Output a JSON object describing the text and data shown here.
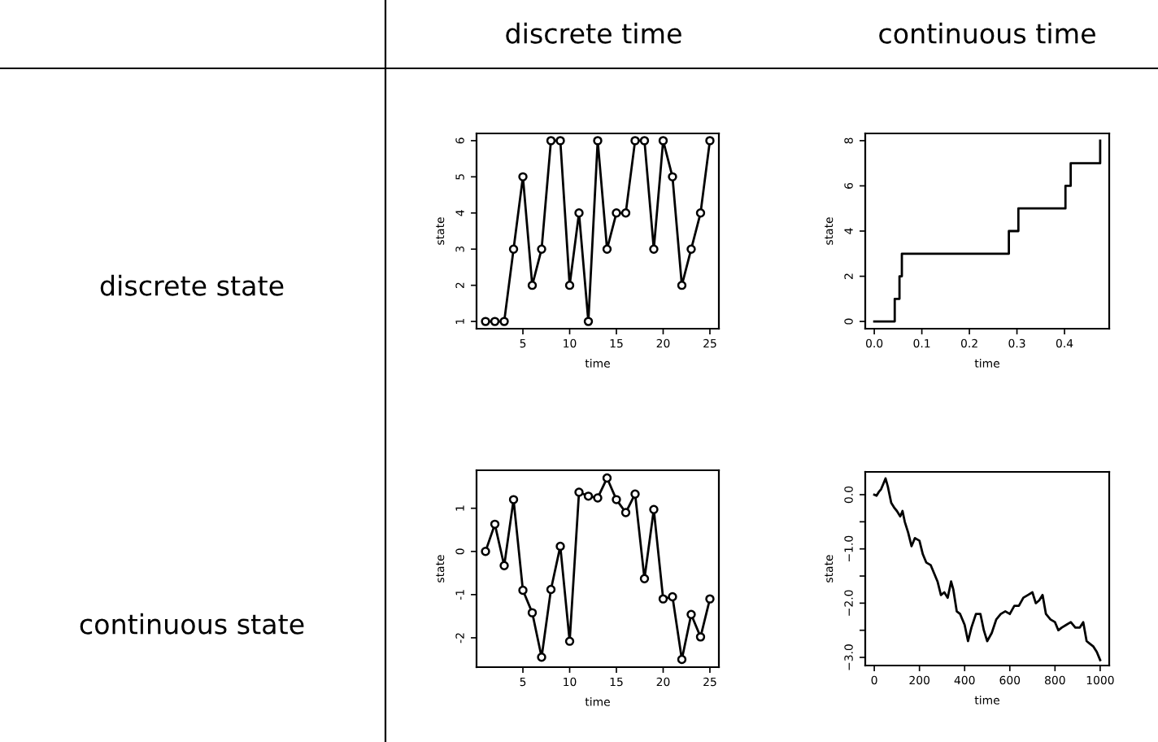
{
  "chart_data": [
    {
      "type": "line",
      "annotations": [
        "discrete time",
        "discrete state"
      ],
      "xlabel": "time",
      "ylabel": "state",
      "marker": "circle",
      "color": "#000000",
      "x": [
        1,
        2,
        3,
        4,
        5,
        6,
        7,
        8,
        9,
        10,
        11,
        12,
        13,
        14,
        15,
        16,
        17,
        18,
        19,
        20,
        21,
        22,
        23,
        24,
        25
      ],
      "values": [
        1,
        1,
        1,
        3,
        5,
        2,
        3,
        6,
        6,
        2,
        4,
        1,
        6,
        3,
        4,
        4,
        6,
        6,
        3,
        6,
        5,
        2,
        3,
        4,
        6
      ],
      "xlim": [
        0.04,
        25.96
      ],
      "xticks": [
        5,
        10,
        15,
        20,
        25
      ],
      "ylim": [
        0.8,
        6.2
      ],
      "yticks": [
        1,
        2,
        3,
        4,
        5,
        6
      ]
    },
    {
      "type": "step",
      "annotations": [
        "continuous time"
      ],
      "xlabel": "time",
      "ylabel": "state",
      "color": "#000000",
      "x": [
        0,
        0.043,
        0.053,
        0.058,
        0.283,
        0.303,
        0.402,
        0.413,
        0.475
      ],
      "values": [
        0,
        1,
        2,
        3,
        4,
        5,
        6,
        7,
        8
      ],
      "xlim": [
        -0.019,
        0.494
      ],
      "xticks": [
        {
          "value": 0,
          "label": "0.0"
        },
        0.1,
        0.2,
        0.3,
        0.4
      ],
      "ylim": [
        -0.32,
        8.32
      ],
      "yticks": [
        0,
        2,
        4,
        6,
        8
      ]
    },
    {
      "type": "line",
      "annotations": [
        "continuous state"
      ],
      "xlabel": "time",
      "ylabel": "state",
      "marker": "circle",
      "color": "#000000",
      "x": [
        1,
        2,
        3,
        4,
        5,
        6,
        7,
        8,
        9,
        10,
        11,
        12,
        13,
        14,
        15,
        16,
        17,
        18,
        19,
        20,
        21,
        22,
        23,
        24,
        25
      ],
      "values": [
        0,
        0.63,
        -0.33,
        1.2,
        -0.9,
        -1.42,
        -2.45,
        -0.88,
        0.12,
        -2.08,
        1.37,
        1.28,
        1.24,
        1.7,
        1.2,
        0.9,
        1.33,
        -0.63,
        0.97,
        -1.1,
        -1.05,
        -2.5,
        -1.46,
        -1.98,
        -1.1
      ],
      "xlim": [
        0.04,
        25.96
      ],
      "xticks": [
        5,
        10,
        15,
        20,
        25
      ],
      "ylim": [
        -2.68,
        1.88
      ],
      "yticks": [
        -2,
        -1,
        0,
        1
      ]
    },
    {
      "type": "line",
      "xlabel": "time",
      "ylabel": "state",
      "color": "#000000",
      "x": [
        0,
        10,
        20,
        30,
        40,
        50,
        60,
        75,
        90,
        100,
        115,
        125,
        135,
        150,
        165,
        180,
        200,
        215,
        230,
        250,
        265,
        280,
        295,
        310,
        325,
        340,
        350,
        365,
        380,
        400,
        415,
        430,
        450,
        470,
        485,
        500,
        520,
        540,
        560,
        580,
        600,
        620,
        640,
        660,
        680,
        700,
        715,
        730,
        745,
        760,
        780,
        800,
        815,
        830,
        850,
        870,
        890,
        910,
        925,
        940,
        955,
        970,
        985,
        1000
      ],
      "values": [
        0.0,
        -0.02,
        0.05,
        0.1,
        0.2,
        0.3,
        0.15,
        -0.15,
        -0.25,
        -0.3,
        -0.4,
        -0.3,
        -0.5,
        -0.7,
        -0.95,
        -0.8,
        -0.85,
        -1.1,
        -1.25,
        -1.3,
        -1.45,
        -1.6,
        -1.85,
        -1.8,
        -1.9,
        -1.6,
        -1.75,
        -2.15,
        -2.2,
        -2.4,
        -2.7,
        -2.45,
        -2.2,
        -2.2,
        -2.5,
        -2.7,
        -2.55,
        -2.3,
        -2.2,
        -2.15,
        -2.2,
        -2.05,
        -2.05,
        -1.9,
        -1.85,
        -1.8,
        -2.0,
        -1.95,
        -1.85,
        -2.2,
        -2.3,
        -2.35,
        -2.5,
        -2.45,
        -2.4,
        -2.35,
        -2.45,
        -2.45,
        -2.35,
        -2.7,
        -2.75,
        -2.8,
        -2.9,
        -3.05
      ],
      "xlim": [
        -40,
        1040
      ],
      "xticks": [
        0,
        200,
        400,
        600,
        800,
        1000
      ],
      "ylim": [
        -3.15,
        0.42
      ],
      "yticks": [
        {
          "value": -3.0,
          "label": "−3.0"
        },
        {
          "value": -2.5,
          "label": null
        },
        {
          "value": -2.0,
          "label": "−2.0"
        },
        {
          "value": -1.5,
          "label": null
        },
        {
          "value": -1.0,
          "label": "−1.0"
        },
        {
          "value": -0.5,
          "label": null
        },
        {
          "value": 0.0,
          "label": "0.0"
        }
      ]
    }
  ]
}
